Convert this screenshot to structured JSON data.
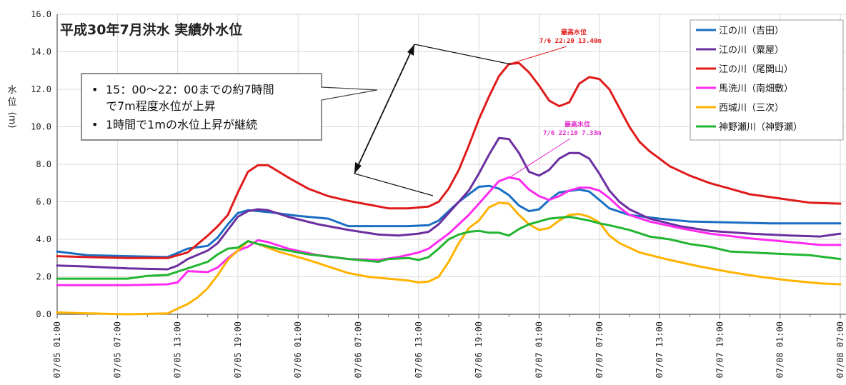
{
  "chart_data": {
    "type": "line",
    "title": "平成30年7月洪水 実績外水位",
    "ylabel": [
      "水",
      "位",
      "(m)"
    ],
    "ylim": [
      0,
      16
    ],
    "yticks": [
      "0.0",
      "2.0",
      "4.0",
      "6.0",
      "8.0",
      "10.0",
      "12.0",
      "14.0",
      "16.0"
    ],
    "xlabels": [
      "07/05 01:00",
      "07/05 07:00",
      "07/05 13:00",
      "07/05 19:00",
      "07/06 01:00",
      "07/06 07:00",
      "07/06 13:00",
      "07/06 19:00",
      "07/07 01:00",
      "07/07 07:00",
      "07/07 13:00",
      "07/07 19:00",
      "07/08 01:00",
      "07/08 07:00"
    ],
    "x_hours_start": 1,
    "x_hours_end": 79,
    "grid": true,
    "legend_position": "top-right",
    "series": [
      {
        "name": "江の川（吉田）",
        "color": "#1a6fc4",
        "points": [
          [
            1,
            3.35
          ],
          [
            4,
            3.15
          ],
          [
            8,
            3.1
          ],
          [
            12,
            3.05
          ],
          [
            14,
            3.5
          ],
          [
            16,
            3.65
          ],
          [
            17,
            4.1
          ],
          [
            18,
            4.8
          ],
          [
            19,
            5.4
          ],
          [
            20,
            5.55
          ],
          [
            22,
            5.45
          ],
          [
            25,
            5.25
          ],
          [
            28,
            5.1
          ],
          [
            30,
            4.7
          ],
          [
            33,
            4.7
          ],
          [
            36,
            4.7
          ],
          [
            38,
            4.75
          ],
          [
            39,
            5.0
          ],
          [
            40,
            5.5
          ],
          [
            41,
            6.0
          ],
          [
            42,
            6.4
          ],
          [
            43,
            6.8
          ],
          [
            44,
            6.85
          ],
          [
            45,
            6.7
          ],
          [
            46,
            6.35
          ],
          [
            47,
            5.8
          ],
          [
            48,
            5.5
          ],
          [
            49,
            5.6
          ],
          [
            50,
            6.1
          ],
          [
            51,
            6.5
          ],
          [
            53,
            6.65
          ],
          [
            54,
            6.55
          ],
          [
            55,
            6.1
          ],
          [
            56,
            5.65
          ],
          [
            58,
            5.3
          ],
          [
            61,
            5.1
          ],
          [
            64,
            4.95
          ],
          [
            68,
            4.9
          ],
          [
            72,
            4.85
          ],
          [
            76,
            4.85
          ],
          [
            79,
            4.85
          ]
        ]
      },
      {
        "name": "江の川（粟屋）",
        "color": "#6b2fa0",
        "points": [
          [
            1,
            2.6
          ],
          [
            4,
            2.55
          ],
          [
            8,
            2.45
          ],
          [
            12,
            2.4
          ],
          [
            13,
            2.6
          ],
          [
            14,
            2.95
          ],
          [
            16,
            3.4
          ],
          [
            17,
            3.8
          ],
          [
            18,
            4.5
          ],
          [
            19,
            5.2
          ],
          [
            20,
            5.5
          ],
          [
            21,
            5.6
          ],
          [
            22,
            5.55
          ],
          [
            24,
            5.2
          ],
          [
            27,
            4.8
          ],
          [
            30,
            4.5
          ],
          [
            33,
            4.25
          ],
          [
            35,
            4.2
          ],
          [
            37,
            4.3
          ],
          [
            38,
            4.4
          ],
          [
            39,
            4.8
          ],
          [
            40,
            5.4
          ],
          [
            41,
            6.0
          ],
          [
            42,
            6.6
          ],
          [
            43,
            7.5
          ],
          [
            44,
            8.5
          ],
          [
            45,
            9.4
          ],
          [
            46,
            9.35
          ],
          [
            47,
            8.6
          ],
          [
            48,
            7.6
          ],
          [
            49,
            7.4
          ],
          [
            50,
            7.7
          ],
          [
            51,
            8.3
          ],
          [
            52,
            8.6
          ],
          [
            53,
            8.6
          ],
          [
            54,
            8.3
          ],
          [
            55,
            7.5
          ],
          [
            56,
            6.6
          ],
          [
            57,
            6.0
          ],
          [
            58,
            5.6
          ],
          [
            60,
            5.1
          ],
          [
            63,
            4.7
          ],
          [
            66,
            4.45
          ],
          [
            70,
            4.3
          ],
          [
            74,
            4.2
          ],
          [
            77,
            4.15
          ],
          [
            79,
            4.3
          ]
        ]
      },
      {
        "name": "江の川（尾関山）",
        "color": "#e01b1b",
        "points": [
          [
            1,
            3.1
          ],
          [
            4,
            3.05
          ],
          [
            8,
            3.0
          ],
          [
            12,
            3.0
          ],
          [
            14,
            3.3
          ],
          [
            16,
            4.2
          ],
          [
            17,
            4.7
          ],
          [
            18,
            5.3
          ],
          [
            19,
            6.5
          ],
          [
            20,
            7.6
          ],
          [
            21,
            7.95
          ],
          [
            22,
            7.95
          ],
          [
            24,
            7.3
          ],
          [
            26,
            6.7
          ],
          [
            28,
            6.3
          ],
          [
            30,
            6.05
          ],
          [
            32,
            5.85
          ],
          [
            34,
            5.65
          ],
          [
            36,
            5.65
          ],
          [
            38,
            5.75
          ],
          [
            39,
            6.0
          ],
          [
            40,
            6.7
          ],
          [
            41,
            7.7
          ],
          [
            42,
            9.0
          ],
          [
            43,
            10.4
          ],
          [
            44,
            11.6
          ],
          [
            45,
            12.7
          ],
          [
            46,
            13.35
          ],
          [
            47,
            13.4
          ],
          [
            48,
            12.9
          ],
          [
            49,
            12.2
          ],
          [
            50,
            11.4
          ],
          [
            51,
            11.1
          ],
          [
            52,
            11.3
          ],
          [
            53,
            12.3
          ],
          [
            54,
            12.65
          ],
          [
            55,
            12.55
          ],
          [
            56,
            12.0
          ],
          [
            57,
            11.0
          ],
          [
            58,
            10.0
          ],
          [
            59,
            9.2
          ],
          [
            60,
            8.7
          ],
          [
            62,
            7.9
          ],
          [
            64,
            7.4
          ],
          [
            66,
            7.0
          ],
          [
            68,
            6.7
          ],
          [
            70,
            6.4
          ],
          [
            72,
            6.25
          ],
          [
            74,
            6.1
          ],
          [
            76,
            5.95
          ],
          [
            79,
            5.9
          ]
        ]
      },
      {
        "name": "馬洗川（南畑敷）",
        "color": "#ff2cf0",
        "points": [
          [
            1,
            1.55
          ],
          [
            4,
            1.55
          ],
          [
            8,
            1.55
          ],
          [
            12,
            1.6
          ],
          [
            13,
            1.7
          ],
          [
            14,
            2.3
          ],
          [
            16,
            2.25
          ],
          [
            17,
            2.5
          ],
          [
            18,
            3.0
          ],
          [
            19,
            3.4
          ],
          [
            20,
            3.6
          ],
          [
            21,
            3.95
          ],
          [
            22,
            3.85
          ],
          [
            24,
            3.5
          ],
          [
            27,
            3.15
          ],
          [
            30,
            2.95
          ],
          [
            33,
            2.9
          ],
          [
            35,
            3.05
          ],
          [
            37,
            3.3
          ],
          [
            38,
            3.5
          ],
          [
            39,
            3.9
          ],
          [
            40,
            4.3
          ],
          [
            41,
            4.8
          ],
          [
            42,
            5.3
          ],
          [
            43,
            5.9
          ],
          [
            44,
            6.5
          ],
          [
            45,
            7.1
          ],
          [
            46,
            7.3
          ],
          [
            47,
            7.2
          ],
          [
            48,
            6.65
          ],
          [
            49,
            6.3
          ],
          [
            50,
            6.1
          ],
          [
            51,
            6.3
          ],
          [
            52,
            6.6
          ],
          [
            53,
            6.75
          ],
          [
            54,
            6.75
          ],
          [
            55,
            6.6
          ],
          [
            56,
            6.2
          ],
          [
            57,
            5.7
          ],
          [
            58,
            5.3
          ],
          [
            60,
            4.95
          ],
          [
            63,
            4.6
          ],
          [
            66,
            4.3
          ],
          [
            70,
            4.05
          ],
          [
            74,
            3.85
          ],
          [
            77,
            3.7
          ],
          [
            79,
            3.7
          ]
        ]
      },
      {
        "name": "西城川（三次）",
        "color": "#ffb300",
        "points": [
          [
            1,
            0.1
          ],
          [
            4,
            0.05
          ],
          [
            8,
            0.0
          ],
          [
            12,
            0.05
          ],
          [
            13,
            0.3
          ],
          [
            14,
            0.55
          ],
          [
            15,
            0.9
          ],
          [
            16,
            1.4
          ],
          [
            17,
            2.1
          ],
          [
            18,
            2.9
          ],
          [
            19,
            3.4
          ],
          [
            20,
            3.9
          ],
          [
            21,
            3.75
          ],
          [
            23,
            3.35
          ],
          [
            26,
            2.9
          ],
          [
            30,
            2.2
          ],
          [
            32,
            2.0
          ],
          [
            34,
            1.9
          ],
          [
            36,
            1.8
          ],
          [
            37,
            1.7
          ],
          [
            38,
            1.75
          ],
          [
            39,
            2.0
          ],
          [
            40,
            2.8
          ],
          [
            41,
            3.8
          ],
          [
            42,
            4.6
          ],
          [
            43,
            5.0
          ],
          [
            44,
            5.7
          ],
          [
            45,
            5.95
          ],
          [
            46,
            5.9
          ],
          [
            47,
            5.3
          ],
          [
            48,
            4.8
          ],
          [
            49,
            4.5
          ],
          [
            50,
            4.6
          ],
          [
            51,
            5.0
          ],
          [
            52,
            5.3
          ],
          [
            53,
            5.35
          ],
          [
            54,
            5.2
          ],
          [
            55,
            4.9
          ],
          [
            56,
            4.2
          ],
          [
            57,
            3.8
          ],
          [
            59,
            3.3
          ],
          [
            62,
            2.9
          ],
          [
            65,
            2.55
          ],
          [
            68,
            2.25
          ],
          [
            71,
            2.0
          ],
          [
            74,
            1.8
          ],
          [
            77,
            1.65
          ],
          [
            79,
            1.6
          ]
        ]
      },
      {
        "name": "神野瀬川（神野瀬）",
        "color": "#22b532",
        "points": [
          [
            1,
            1.9
          ],
          [
            4,
            1.9
          ],
          [
            8,
            1.9
          ],
          [
            10,
            2.05
          ],
          [
            12,
            2.1
          ],
          [
            14,
            2.45
          ],
          [
            16,
            2.8
          ],
          [
            17,
            3.2
          ],
          [
            18,
            3.5
          ],
          [
            19,
            3.55
          ],
          [
            20,
            3.9
          ],
          [
            21,
            3.75
          ],
          [
            23,
            3.5
          ],
          [
            26,
            3.2
          ],
          [
            30,
            2.95
          ],
          [
            32,
            2.85
          ],
          [
            33,
            2.8
          ],
          [
            34,
            2.95
          ],
          [
            36,
            3.0
          ],
          [
            37,
            2.9
          ],
          [
            38,
            3.05
          ],
          [
            39,
            3.5
          ],
          [
            40,
            4.0
          ],
          [
            41,
            4.25
          ],
          [
            42,
            4.4
          ],
          [
            43,
            4.45
          ],
          [
            44,
            4.35
          ],
          [
            45,
            4.35
          ],
          [
            46,
            4.2
          ],
          [
            47,
            4.55
          ],
          [
            48,
            4.8
          ],
          [
            49,
            4.95
          ],
          [
            50,
            5.1
          ],
          [
            51,
            5.15
          ],
          [
            52,
            5.2
          ],
          [
            53,
            5.1
          ],
          [
            54,
            5.0
          ],
          [
            55,
            4.85
          ],
          [
            56,
            4.75
          ],
          [
            58,
            4.5
          ],
          [
            60,
            4.15
          ],
          [
            62,
            4.0
          ],
          [
            64,
            3.75
          ],
          [
            66,
            3.6
          ],
          [
            68,
            3.35
          ],
          [
            70,
            3.3
          ],
          [
            72,
            3.25
          ],
          [
            74,
            3.2
          ],
          [
            76,
            3.15
          ],
          [
            79,
            2.95
          ]
        ]
      }
    ],
    "annotations": {
      "bullets": [
        "15：00～22：00までの約7時間\nで7m程度水位が上昇",
        "1時間で1mの水位上昇が継続"
      ],
      "peaks": [
        {
          "label": "最高水位",
          "value": "7/6 22:20 13.40m",
          "color": "#e01b1b",
          "x": 46.33,
          "y": 13.4
        },
        {
          "label": "最高水位",
          "value": "7/6 22:10 7.33m",
          "color": "#e028c8",
          "x": 46.17,
          "y": 7.33
        }
      ]
    }
  }
}
